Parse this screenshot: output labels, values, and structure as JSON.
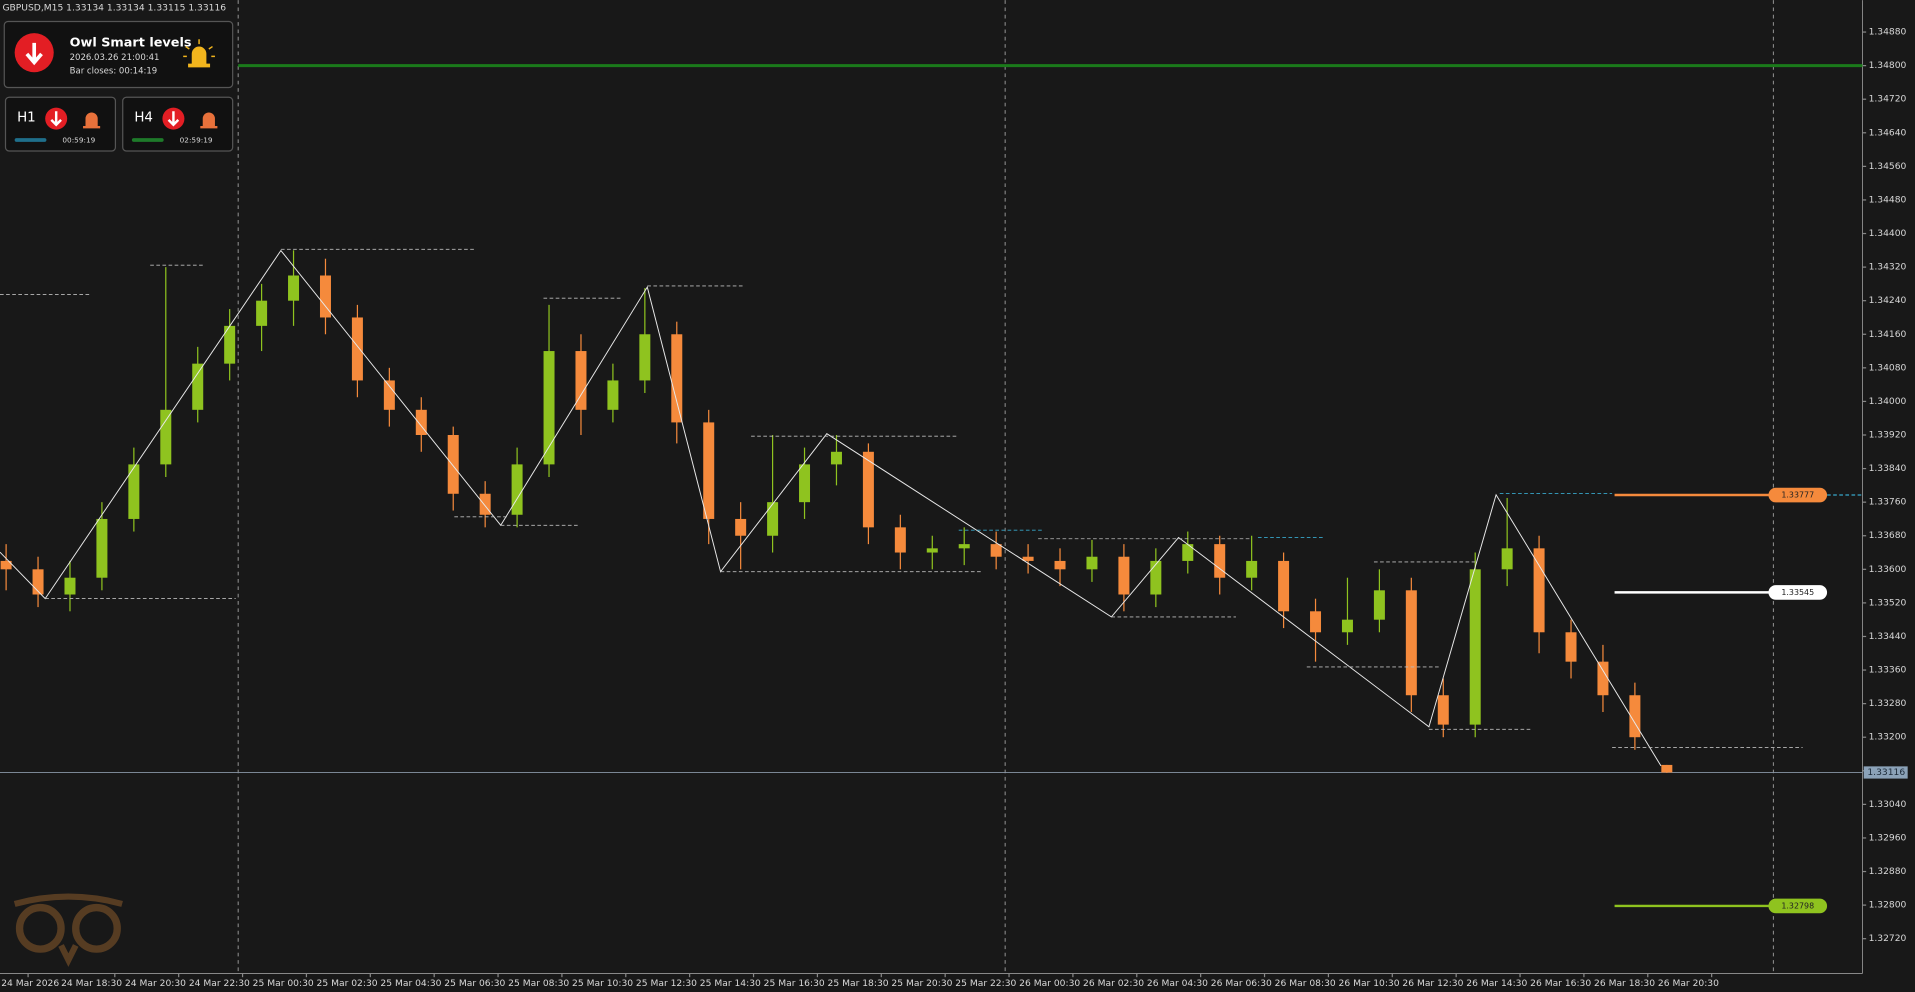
{
  "header": {
    "symbol": "GBPUSD,M15",
    "open": 1.33134,
    "high": 1.33134,
    "low": 1.33115,
    "close": 1.33116
  },
  "panel": {
    "title": "Owl Smart levels",
    "datetime": "2026.03.26 21:00:41",
    "bar_closes": "Bar closes: 00:14:19",
    "timeframes": [
      {
        "name": "H1",
        "timer": "00:59:19",
        "bar_color": "#1f6f8b"
      },
      {
        "name": "H4",
        "timer": "02:59:19",
        "bar_color": "#1e7a2a"
      }
    ]
  },
  "chart_data": {
    "type": "candlestick",
    "bull_color": "#8fc31f",
    "bear_color": "#f58a3c",
    "candles": [
      [
        1.3362,
        1.3366,
        1.3355,
        1.336
      ],
      [
        1.336,
        1.3363,
        1.3351,
        1.3354
      ],
      [
        1.3354,
        1.3362,
        1.335,
        1.3358
      ],
      [
        1.3358,
        1.3376,
        1.3355,
        1.3372
      ],
      [
        1.3372,
        1.3389,
        1.3369,
        1.3385
      ],
      [
        1.3385,
        1.3432,
        1.3382,
        1.3398
      ],
      [
        1.3398,
        1.3413,
        1.3395,
        1.3409
      ],
      [
        1.3409,
        1.3422,
        1.3405,
        1.3418
      ],
      [
        1.3418,
        1.3428,
        1.3412,
        1.3424
      ],
      [
        1.3424,
        1.3436,
        1.3418,
        1.343
      ],
      [
        1.343,
        1.3434,
        1.3416,
        1.342
      ],
      [
        1.342,
        1.3423,
        1.3401,
        1.3405
      ],
      [
        1.3405,
        1.3408,
        1.3394,
        1.3398
      ],
      [
        1.3398,
        1.3401,
        1.3388,
        1.3392
      ],
      [
        1.3392,
        1.3394,
        1.3374,
        1.3378
      ],
      [
        1.3378,
        1.3381,
        1.337,
        1.3373
      ],
      [
        1.3373,
        1.3389,
        1.337,
        1.3385
      ],
      [
        1.3385,
        1.3423,
        1.3382,
        1.3412
      ],
      [
        1.3412,
        1.3416,
        1.3392,
        1.3398
      ],
      [
        1.3398,
        1.3409,
        1.3395,
        1.3405
      ],
      [
        1.3405,
        1.3427,
        1.3402,
        1.3416
      ],
      [
        1.3416,
        1.3419,
        1.339,
        1.3395
      ],
      [
        1.3395,
        1.3398,
        1.3366,
        1.3372
      ],
      [
        1.3372,
        1.3376,
        1.336,
        1.3368
      ],
      [
        1.3368,
        1.3392,
        1.3364,
        1.3376
      ],
      [
        1.3376,
        1.3389,
        1.3372,
        1.3385
      ],
      [
        1.3385,
        1.3392,
        1.338,
        1.3388
      ],
      [
        1.3388,
        1.339,
        1.3366,
        1.337
      ],
      [
        1.337,
        1.3373,
        1.336,
        1.3364
      ],
      [
        1.3364,
        1.3368,
        1.336,
        1.3365
      ],
      [
        1.3365,
        1.337,
        1.3361,
        1.3366
      ],
      [
        1.3366,
        1.3369,
        1.336,
        1.3363
      ],
      [
        1.3363,
        1.3366,
        1.3359,
        1.3362
      ],
      [
        1.3362,
        1.3365,
        1.3356,
        1.336
      ],
      [
        1.336,
        1.3367,
        1.3357,
        1.3363
      ],
      [
        1.3363,
        1.3366,
        1.335,
        1.3354
      ],
      [
        1.3354,
        1.3365,
        1.3351,
        1.3362
      ],
      [
        1.3362,
        1.3369,
        1.3359,
        1.3366
      ],
      [
        1.3366,
        1.3368,
        1.3354,
        1.3358
      ],
      [
        1.3358,
        1.3368,
        1.3355,
        1.3362
      ],
      [
        1.3362,
        1.3364,
        1.3346,
        1.335
      ],
      [
        1.335,
        1.3353,
        1.3338,
        1.3345
      ],
      [
        1.3345,
        1.3358,
        1.3342,
        1.3348
      ],
      [
        1.3348,
        1.336,
        1.3345,
        1.3355
      ],
      [
        1.3355,
        1.3358,
        1.3326,
        1.333
      ],
      [
        1.333,
        1.3334,
        1.332,
        1.3323
      ],
      [
        1.3323,
        1.3364,
        1.332,
        1.336
      ],
      [
        1.336,
        1.3377,
        1.3356,
        1.3365
      ],
      [
        1.3365,
        1.3368,
        1.334,
        1.3345
      ],
      [
        1.3345,
        1.3348,
        1.3334,
        1.3338
      ],
      [
        1.3338,
        1.3342,
        1.3326,
        1.333
      ],
      [
        1.333,
        1.3333,
        1.3317,
        1.332
      ],
      [
        1.33134,
        1.33134,
        1.33115,
        1.33116
      ]
    ],
    "ylim": [
      1.32637,
      1.34956
    ],
    "yticks": [
      {
        "value": 1.3272,
        "label": "1.32720"
      },
      {
        "value": 1.328,
        "label": "1.32800"
      },
      {
        "value": 1.3288,
        "label": "1.32880"
      },
      {
        "value": 1.3296,
        "label": "1.32960"
      },
      {
        "value": 1.3304,
        "label": "1.33040"
      },
      {
        "value": 1.3312,
        "label": "1.33120"
      },
      {
        "value": 1.332,
        "label": "1.33200"
      },
      {
        "value": 1.3328,
        "label": "1.33280"
      },
      {
        "value": 1.3336,
        "label": "1.33360"
      },
      {
        "value": 1.3344,
        "label": "1.33440"
      },
      {
        "value": 1.3352,
        "label": "1.33520"
      },
      {
        "value": 1.336,
        "label": "1.33600"
      },
      {
        "value": 1.3368,
        "label": "1.33680"
      },
      {
        "value": 1.3376,
        "label": "1.33760"
      },
      {
        "value": 1.3384,
        "label": "1.33840"
      },
      {
        "value": 1.3392,
        "label": "1.33920"
      },
      {
        "value": 1.34,
        "label": "1.34000"
      },
      {
        "value": 1.3408,
        "label": "1.34080"
      },
      {
        "value": 1.3416,
        "label": "1.34160"
      },
      {
        "value": 1.3424,
        "label": "1.34240"
      },
      {
        "value": 1.3432,
        "label": "1.34320"
      },
      {
        "value": 1.344,
        "label": "1.34400"
      },
      {
        "value": 1.3448,
        "label": "1.34480"
      },
      {
        "value": 1.3456,
        "label": "1.34560"
      },
      {
        "value": 1.3464,
        "label": "1.34640"
      },
      {
        "value": 1.3472,
        "label": "1.34720"
      },
      {
        "value": 1.348,
        "label": "1.34800"
      },
      {
        "value": 1.3488,
        "label": "1.34880"
      }
    ],
    "time_labels": [
      "24 Mar 2026",
      "24 Mar 18:30",
      "24 Mar 20:30",
      "24 Mar 22:30",
      "25 Mar 00:30",
      "25 Mar 02:30",
      "25 Mar 04:30",
      "25 Mar 06:30",
      "25 Mar 08:30",
      "25 Mar 10:30",
      "25 Mar 12:30",
      "25 Mar 14:30",
      "25 Mar 16:30",
      "25 Mar 18:30",
      "25 Mar 20:30",
      "25 Mar 22:30",
      "26 Mar 00:30",
      "26 Mar 02:30",
      "26 Mar 04:30",
      "26 Mar 06:30",
      "26 Mar 08:30",
      "26 Mar 10:30",
      "26 Mar 12:30",
      "26 Mar 14:30",
      "26 Mar 16:30",
      "26 Mar 18:30",
      "26 Mar 20:30"
    ],
    "resistance_line": {
      "value": 1.348,
      "color": "#1a7a1a"
    },
    "levels": [
      {
        "value": 1.33777,
        "color": "#f58a3c"
      },
      {
        "value": 1.33545,
        "color": "#ffffff"
      },
      {
        "value": 1.32798,
        "color": "#8fc31f"
      }
    ],
    "current_price": 1.33116
  }
}
